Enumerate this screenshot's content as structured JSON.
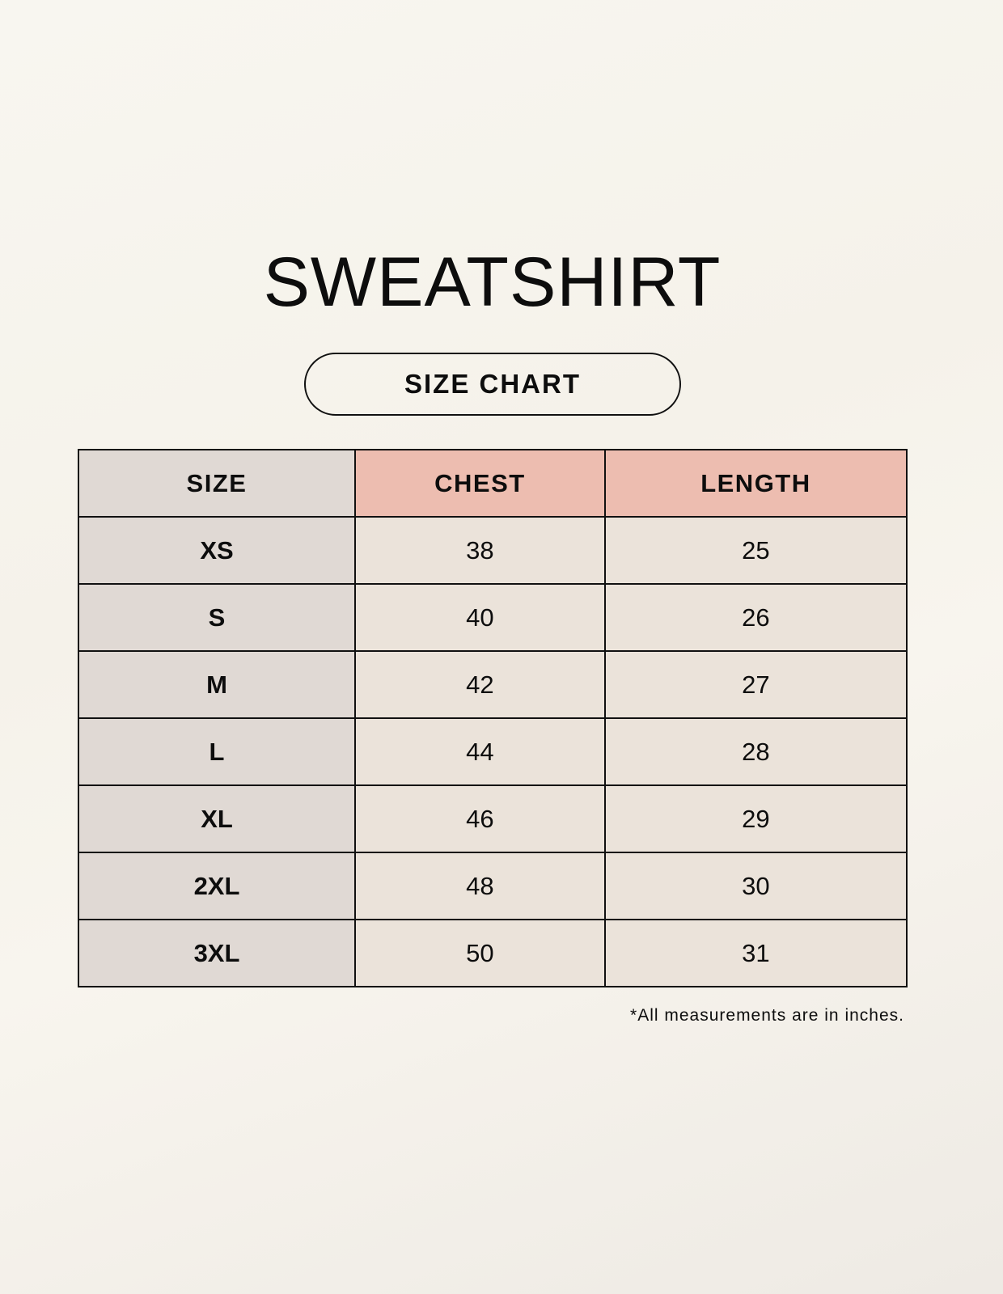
{
  "title": "SWEATSHIRT",
  "subtitle": "SIZE CHART",
  "table": {
    "headers": [
      "SIZE",
      "CHEST",
      "LENGTH"
    ],
    "rows": [
      [
        "XS",
        "38",
        "25"
      ],
      [
        "S",
        "40",
        "26"
      ],
      [
        "M",
        "42",
        "27"
      ],
      [
        "L",
        "44",
        "28"
      ],
      [
        "XL",
        "46",
        "29"
      ],
      [
        "2XL",
        "48",
        "30"
      ],
      [
        "3XL",
        "50",
        "31"
      ]
    ]
  },
  "note": "*All measurements are in inches.",
  "colors": {
    "size_column": "#e0d9d4",
    "header_accent": "#edbdb0",
    "cell": "#ebe3da"
  }
}
